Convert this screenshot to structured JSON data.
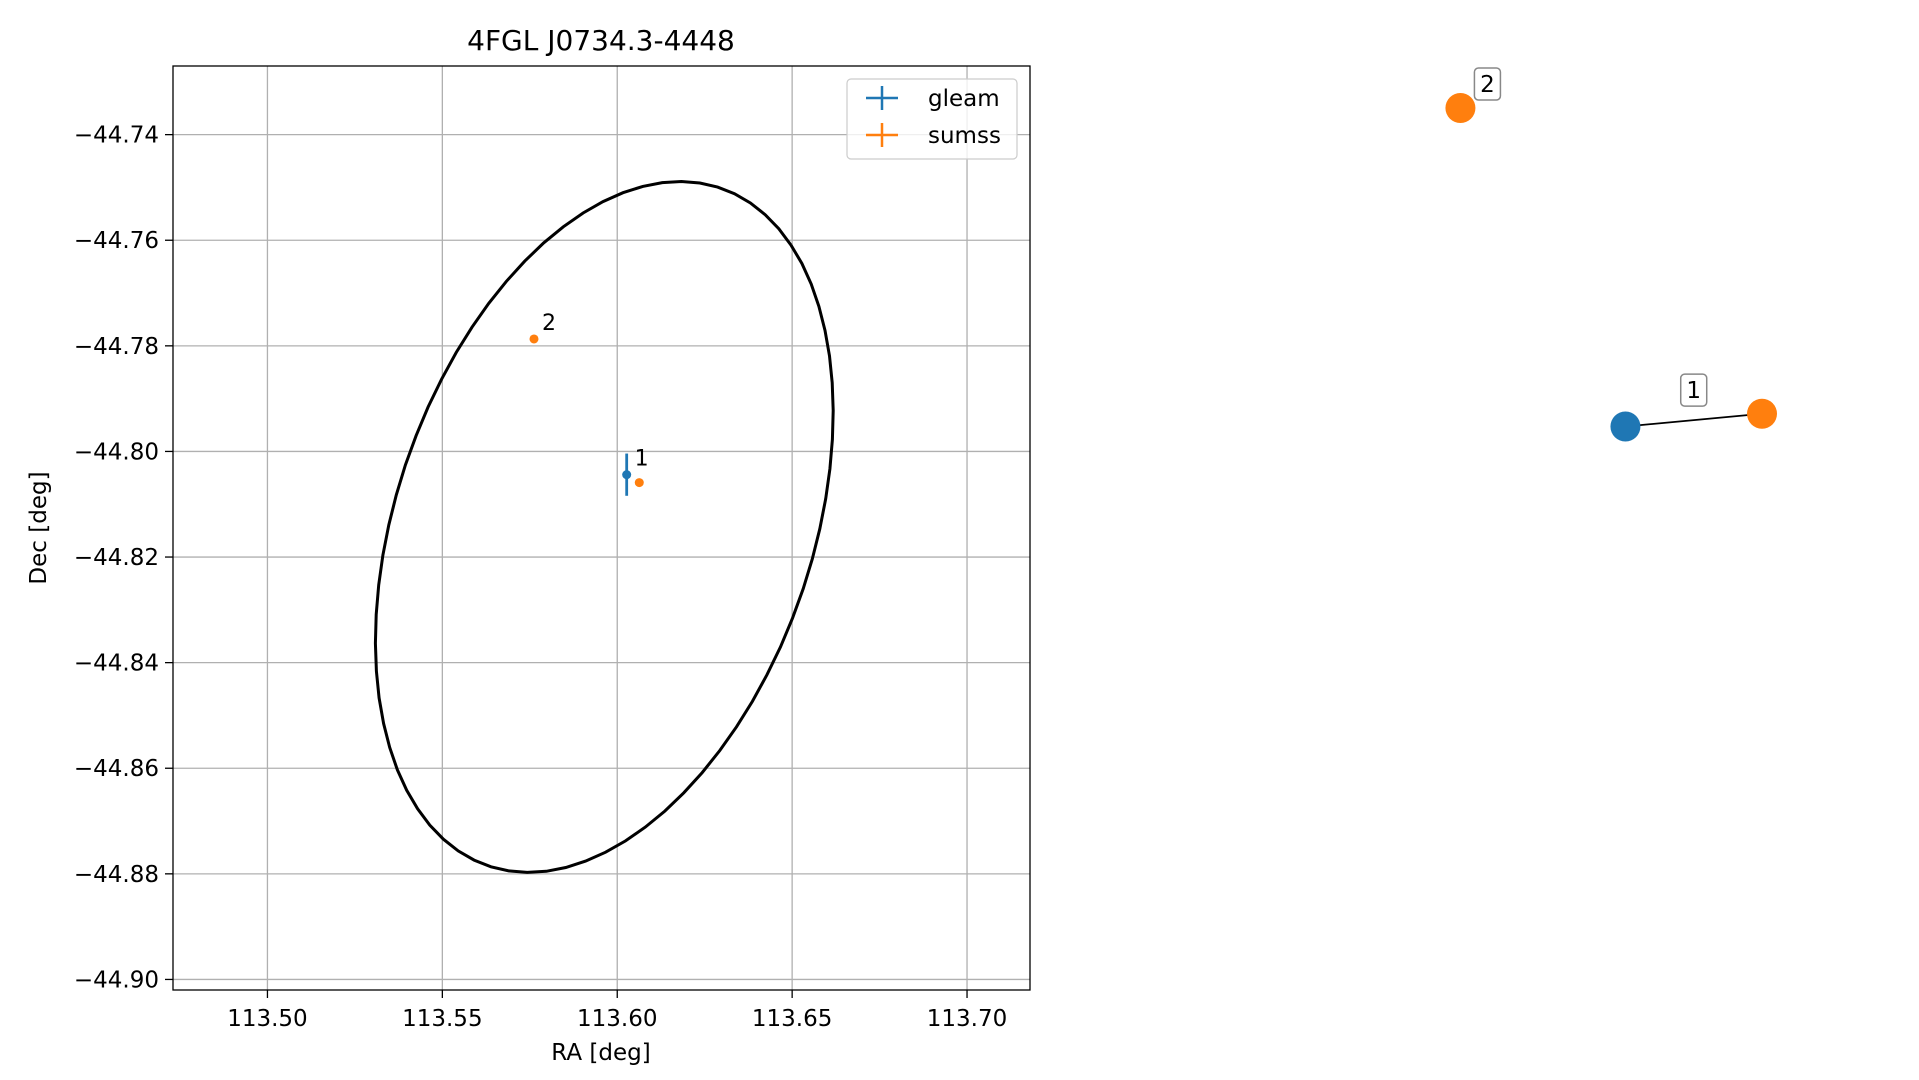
{
  "chart_data": [
    {
      "type": "scatter",
      "title": "4FGL J0734.3-4448",
      "xlabel": "RA [deg]",
      "ylabel": "Dec [deg]",
      "xlim": [
        113.473,
        113.718
      ],
      "ylim": [
        -44.902,
        -44.727
      ],
      "x_ticks": [
        113.5,
        113.55,
        113.6,
        113.65,
        113.7
      ],
      "x_tick_labels": [
        "113.50",
        "113.55",
        "113.60",
        "113.65",
        "113.70"
      ],
      "y_ticks": [
        -44.74,
        -44.76,
        -44.78,
        -44.8,
        -44.82,
        -44.84,
        -44.86,
        -44.88,
        -44.9
      ],
      "y_tick_labels": [
        "−44.74",
        "−44.76",
        "−44.78",
        "−44.80",
        "−44.82",
        "−44.84",
        "−44.86",
        "−44.88",
        "−44.90"
      ],
      "grid": true,
      "legend": "top-right",
      "series": [
        {
          "name": "gleam",
          "color": "#1f77b4",
          "points": [
            {
              "ra": 113.6027,
              "dec": -44.8044,
              "ra_err": 0.0008,
              "dec_err": 0.004,
              "label": "1"
            }
          ]
        },
        {
          "name": "sumss",
          "color": "#ff7f0e",
          "points": [
            {
              "ra": 113.5762,
              "dec": -44.7787,
              "label": "2"
            },
            {
              "ra": 113.6063,
              "dec": -44.8059,
              "label": ""
            }
          ]
        }
      ],
      "ellipse": {
        "center_ra": 113.5963,
        "center_dec": -44.8143,
        "semi_axis_ra": 0.0755,
        "semi_axis_dec": 0.0535,
        "rotation_deg": 45,
        "color": "#000000"
      }
    },
    {
      "type": "graph",
      "nodes": [
        {
          "id": "gleam-1",
          "x": 0.76,
          "y": 0.5,
          "color": "#1f77b4"
        },
        {
          "id": "sumss-1",
          "x": 1.0,
          "y": 0.52,
          "color": "#ff7f0e"
        },
        {
          "id": "sumss-2",
          "x": 0.47,
          "y": 1.0,
          "color": "#ff7f0e",
          "label": "2"
        }
      ],
      "edges": [
        {
          "source": "gleam-1",
          "target": "sumss-1",
          "label": "1"
        }
      ]
    }
  ]
}
